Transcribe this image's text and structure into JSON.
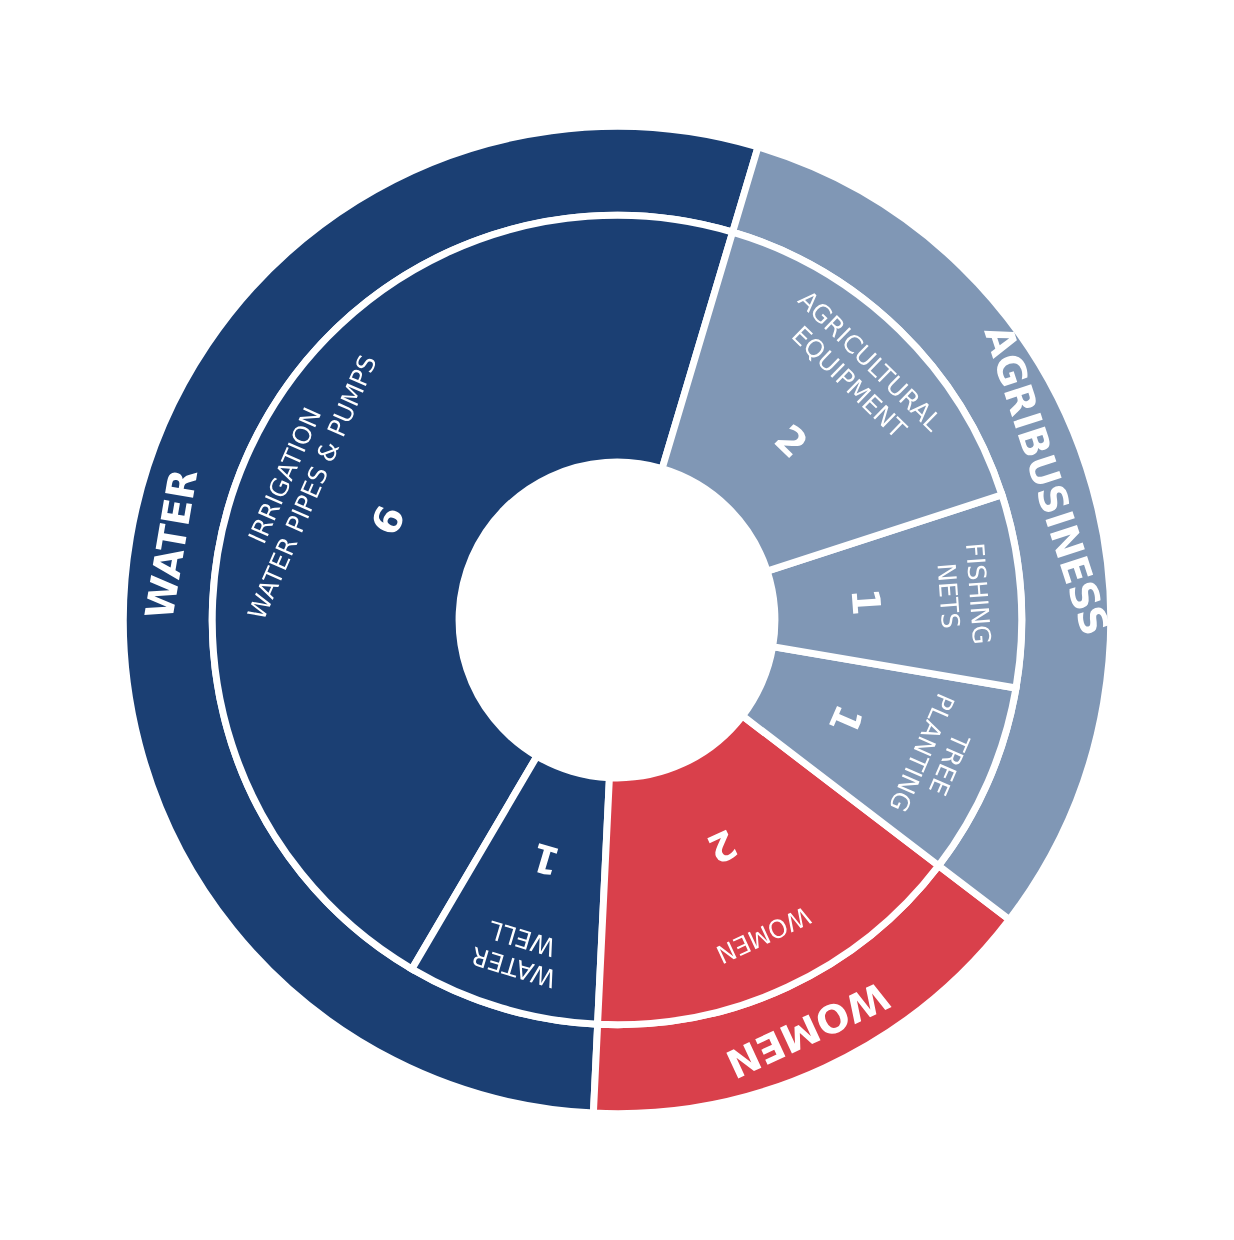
{
  "chart_data": {
    "type": "donut",
    "categories": [
      "IRRIGATION\nWATER PIPES & PUMPS",
      "WATER\nWELL",
      "WOMEN",
      "TREE\nPLANTING",
      "FISHING\nNETS",
      "AGRICULTURAL\nEQUIPMENT"
    ],
    "series": [
      {
        "values": [
          6,
          1,
          2,
          1,
          1,
          2
        ],
        "value_labels": [
          "6",
          "1",
          "2",
          "1",
          "1",
          "2"
        ],
        "colors": [
          "#1b3f73",
          "#1b3f73",
          "#d9404b",
          "#8097b5",
          "#8097b5",
          "#8097b5"
        ]
      },
      {
        "values": [
          53.85,
          null,
          15.38,
          30.77,
          null,
          null
        ],
        "colors": [
          "#1b3f73",
          "#1b3f73",
          "#d9404b",
          "#8097b5",
          "#8097b5",
          "#8097b5"
        ]
      }
    ],
    "annotations": [
      "WATER",
      "WOMEN",
      "AGRIBUSINESS"
    ]
  }
}
